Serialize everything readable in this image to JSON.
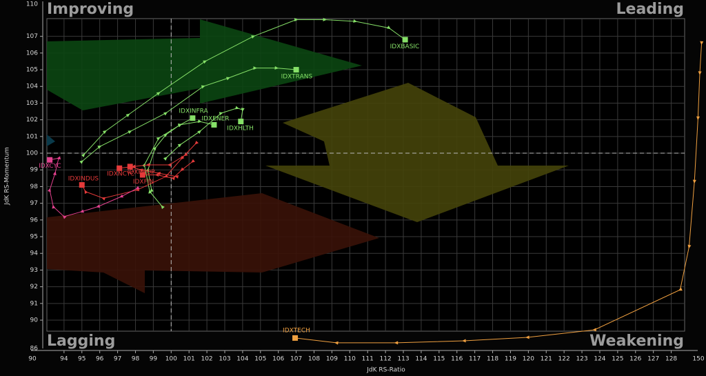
{
  "chart_data": {
    "type": "rrg",
    "quadrant_labels": {
      "top_left": "Improving",
      "top_right": "Leading",
      "bottom_left": "Lagging",
      "bottom_right": "Weakening"
    },
    "x_label": "JdK RS-Ratio",
    "y_label": "JdK RS-Momentum",
    "xlim": [
      93.04,
      128.75
    ],
    "ylim": [
      89.34,
      108.06
    ],
    "xticks": [
      94,
      95,
      96,
      97,
      98,
      99,
      100,
      101,
      102,
      103,
      104,
      105,
      106,
      107,
      108,
      109,
      110,
      111,
      112,
      113,
      114,
      115,
      116,
      117,
      118,
      119,
      120,
      121,
      122,
      123,
      124,
      125,
      126,
      127,
      128
    ],
    "yticks": [
      90,
      91,
      92,
      93,
      94,
      95,
      96,
      97,
      98,
      99,
      100,
      101,
      102,
      103,
      104,
      105,
      106,
      107
    ],
    "x_axis_ends": [
      90,
      150
    ],
    "y_axis_ends": [
      86,
      110
    ],
    "crosshair": [
      100,
      100
    ],
    "grid": true,
    "series": [
      {
        "name": "IDXBASIC",
        "color": "#86e068",
        "x": [
          95.1,
          96.3,
          97.6,
          99.3,
          101.9,
          104.6,
          107.0,
          108.6,
          110.3,
          112.2,
          113.1
        ],
        "y": [
          99.9,
          101.3,
          102.3,
          103.6,
          105.5,
          107.0,
          108.0,
          108.0,
          107.9,
          107.5,
          106.8
        ]
      },
      {
        "name": "IDXTRANS",
        "color": "#86e068",
        "x": [
          95.0,
          96.0,
          97.7,
          99.7,
          101.8,
          103.2,
          104.7,
          105.9,
          107.0
        ],
        "y": [
          99.5,
          100.4,
          101.3,
          102.4,
          104.0,
          104.5,
          105.1,
          105.1,
          105.0
        ]
      },
      {
        "name": "IDXINFRA",
        "color": "#86e068",
        "x": [
          98.9,
          98.7,
          99.1,
          99.7,
          100.5,
          101.2
        ],
        "y": [
          97.8,
          99.0,
          100.3,
          101.1,
          101.7,
          102.1
        ]
      },
      {
        "name": "IDXENER",
        "color": "#86e068",
        "x": [
          99.5,
          98.8,
          98.5,
          99.3,
          100.5,
          101.6,
          102.4
        ],
        "y": [
          96.8,
          97.7,
          99.3,
          100.9,
          101.7,
          101.9,
          101.7
        ]
      },
      {
        "name": "IDXHLTH",
        "color": "#86e068",
        "x": [
          99.7,
          100.5,
          101.6,
          102.8,
          103.7,
          104.0,
          103.9
        ],
        "y": [
          99.7,
          100.5,
          101.3,
          102.4,
          102.7,
          102.6,
          101.9
        ]
      },
      {
        "name": "IDXINDUS",
        "color": "#e43a3a",
        "x": [
          101.4,
          100.6,
          99.7,
          98.1,
          96.2,
          95.2,
          95.0
        ],
        "y": [
          100.6,
          99.7,
          98.6,
          97.8,
          97.3,
          97.7,
          98.1
        ]
      },
      {
        "name": "IDXNCYC",
        "color": "#e43a3a",
        "x": [
          100.8,
          99.9,
          98.7,
          97.9,
          97.1
        ],
        "y": [
          99.9,
          99.3,
          99.3,
          99.2,
          99.1
        ]
      },
      {
        "name": "IDXPROP",
        "color": "#e43a3a",
        "x": [
          100.3,
          99.3,
          98.3,
          97.7
        ],
        "y": [
          98.6,
          98.8,
          99.0,
          99.2
        ]
      },
      {
        "name": "IDXFIN",
        "color": "#e43a3a",
        "x": [
          101.2,
          100.6,
          100.1,
          99.2,
          98.4
        ],
        "y": [
          99.5,
          99.0,
          98.5,
          98.7,
          98.7
        ]
      },
      {
        "name": "IDXCYC",
        "color": "#e2418e",
        "x": [
          98.1,
          97.2,
          95.9,
          95.0,
          94.0,
          93.4,
          93.2,
          93.5,
          93.7,
          93.2
        ],
        "y": [
          97.9,
          97.4,
          96.8,
          96.5,
          96.2,
          96.8,
          97.8,
          98.8,
          99.7,
          99.6
        ]
      },
      {
        "name": "IDXTECH",
        "color": "#f0a040",
        "x": [
          129.7,
          129.6,
          129.5,
          129.3,
          129.0,
          128.5,
          123.7,
          119.95,
          116.4,
          112.6,
          109.25,
          106.94
        ],
        "y": [
          106.6,
          104.8,
          102.1,
          98.3,
          94.4,
          91.82,
          89.42,
          88.97,
          88.76,
          88.64,
          88.64,
          88.93
        ]
      }
    ]
  }
}
